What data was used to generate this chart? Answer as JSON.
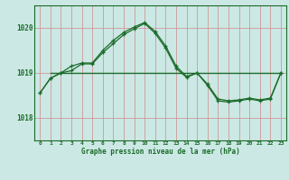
{
  "title": "Graphe pression niveau de la mer (hPa)",
  "background_color": "#cce8e4",
  "plot_bg_color": "#cce8e4",
  "grid_color": "#aaaacc",
  "line_color": "#1a6b2a",
  "xlim": [
    -0.5,
    23.5
  ],
  "ylim": [
    1017.5,
    1020.5
  ],
  "yticks": [
    1018,
    1019,
    1020
  ],
  "xticks": [
    0,
    1,
    2,
    3,
    4,
    5,
    6,
    7,
    8,
    9,
    10,
    11,
    12,
    13,
    14,
    15,
    16,
    17,
    18,
    19,
    20,
    21,
    22,
    23
  ],
  "series1": {
    "x": [
      0,
      1,
      2,
      3,
      4,
      5,
      6,
      7,
      8,
      9,
      10,
      11,
      12,
      13,
      14,
      15,
      16,
      17,
      18,
      19,
      20,
      21,
      22,
      23
    ],
    "y": [
      1018.55,
      1018.88,
      1019.0,
      1019.05,
      1019.2,
      1019.2,
      1019.45,
      1019.65,
      1019.85,
      1019.98,
      1020.1,
      1019.88,
      1019.55,
      1019.1,
      1018.9,
      1019.0,
      1018.72,
      1018.38,
      1018.35,
      1018.38,
      1018.42,
      1018.38,
      1018.42,
      1019.0
    ]
  },
  "series2": {
    "x": [
      0,
      1,
      2,
      3,
      4,
      5,
      6,
      7,
      8,
      9,
      10,
      11,
      12,
      13,
      14,
      15,
      16,
      17,
      18,
      19,
      20,
      21,
      22,
      23
    ],
    "y": [
      1018.55,
      1018.88,
      1019.0,
      1019.15,
      1019.22,
      1019.22,
      1019.5,
      1019.72,
      1019.9,
      1020.02,
      1020.12,
      1019.92,
      1019.6,
      1019.15,
      1018.92,
      1019.0,
      1018.75,
      1018.42,
      1018.38,
      1018.4,
      1018.44,
      1018.4,
      1018.44,
      1019.0
    ]
  },
  "series3": {
    "x": [
      1,
      23
    ],
    "y": [
      1019.0,
      1019.0
    ]
  }
}
